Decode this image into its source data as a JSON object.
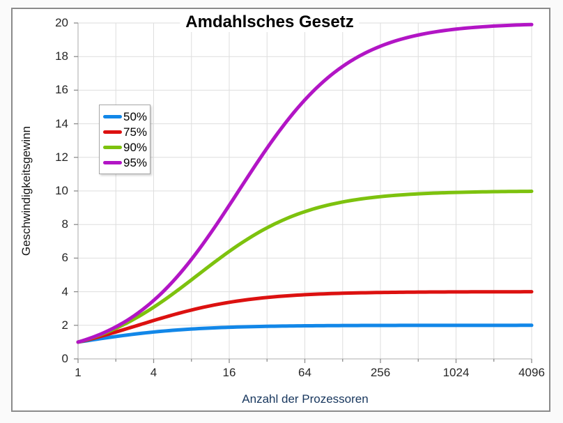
{
  "chart_data": {
    "type": "line",
    "title": "Amdahlsches Gesetz",
    "xlabel": "Anzahl der Prozessoren",
    "ylabel": "Geschwindigkeitsgewinn",
    "x_scale": "log2",
    "xlim": [
      1,
      4096
    ],
    "ylim": [
      0,
      20
    ],
    "grid": true,
    "x_ticks": [
      1,
      4,
      16,
      64,
      256,
      1024,
      4096
    ],
    "x_gridlines": [
      1,
      2,
      4,
      8,
      16,
      32,
      64,
      128,
      256,
      512,
      1024,
      2048,
      4096
    ],
    "y_ticks": [
      0,
      2,
      4,
      6,
      8,
      10,
      12,
      14,
      16,
      18,
      20
    ],
    "legend_position": "upper-left-inside",
    "x_samples": [
      1,
      2,
      4,
      8,
      16,
      32,
      64,
      128,
      256,
      512,
      1024,
      2048,
      4096
    ],
    "series": [
      {
        "name": "50%",
        "parallel_fraction": 0.5,
        "color": "#1287E8",
        "values": [
          1.0,
          1.333,
          1.6,
          1.778,
          1.882,
          1.939,
          1.969,
          1.984,
          1.992,
          1.996,
          1.998,
          1.999,
          2.0
        ]
      },
      {
        "name": "75%",
        "parallel_fraction": 0.75,
        "color": "#DC1110",
        "values": [
          1.0,
          1.6,
          2.286,
          2.909,
          3.368,
          3.657,
          3.82,
          3.908,
          3.953,
          3.977,
          3.988,
          3.994,
          3.997
        ]
      },
      {
        "name": "90%",
        "parallel_fraction": 0.9,
        "color": "#7DC20E",
        "values": [
          1.0,
          1.818,
          3.077,
          4.706,
          6.4,
          7.805,
          8.767,
          9.343,
          9.661,
          9.827,
          9.913,
          9.956,
          9.978
        ]
      },
      {
        "name": "95%",
        "parallel_fraction": 0.95,
        "color": "#B215C5",
        "values": [
          1.0,
          1.905,
          3.478,
          5.926,
          9.143,
          12.549,
          15.422,
          17.415,
          18.618,
          19.283,
          19.636,
          19.818,
          19.908
        ]
      }
    ],
    "style": {
      "gridline_color": "#DEDEDE",
      "axis_color": "#BDBDBD",
      "tick_color": "#8C8C8C",
      "line_width": 5
    }
  }
}
